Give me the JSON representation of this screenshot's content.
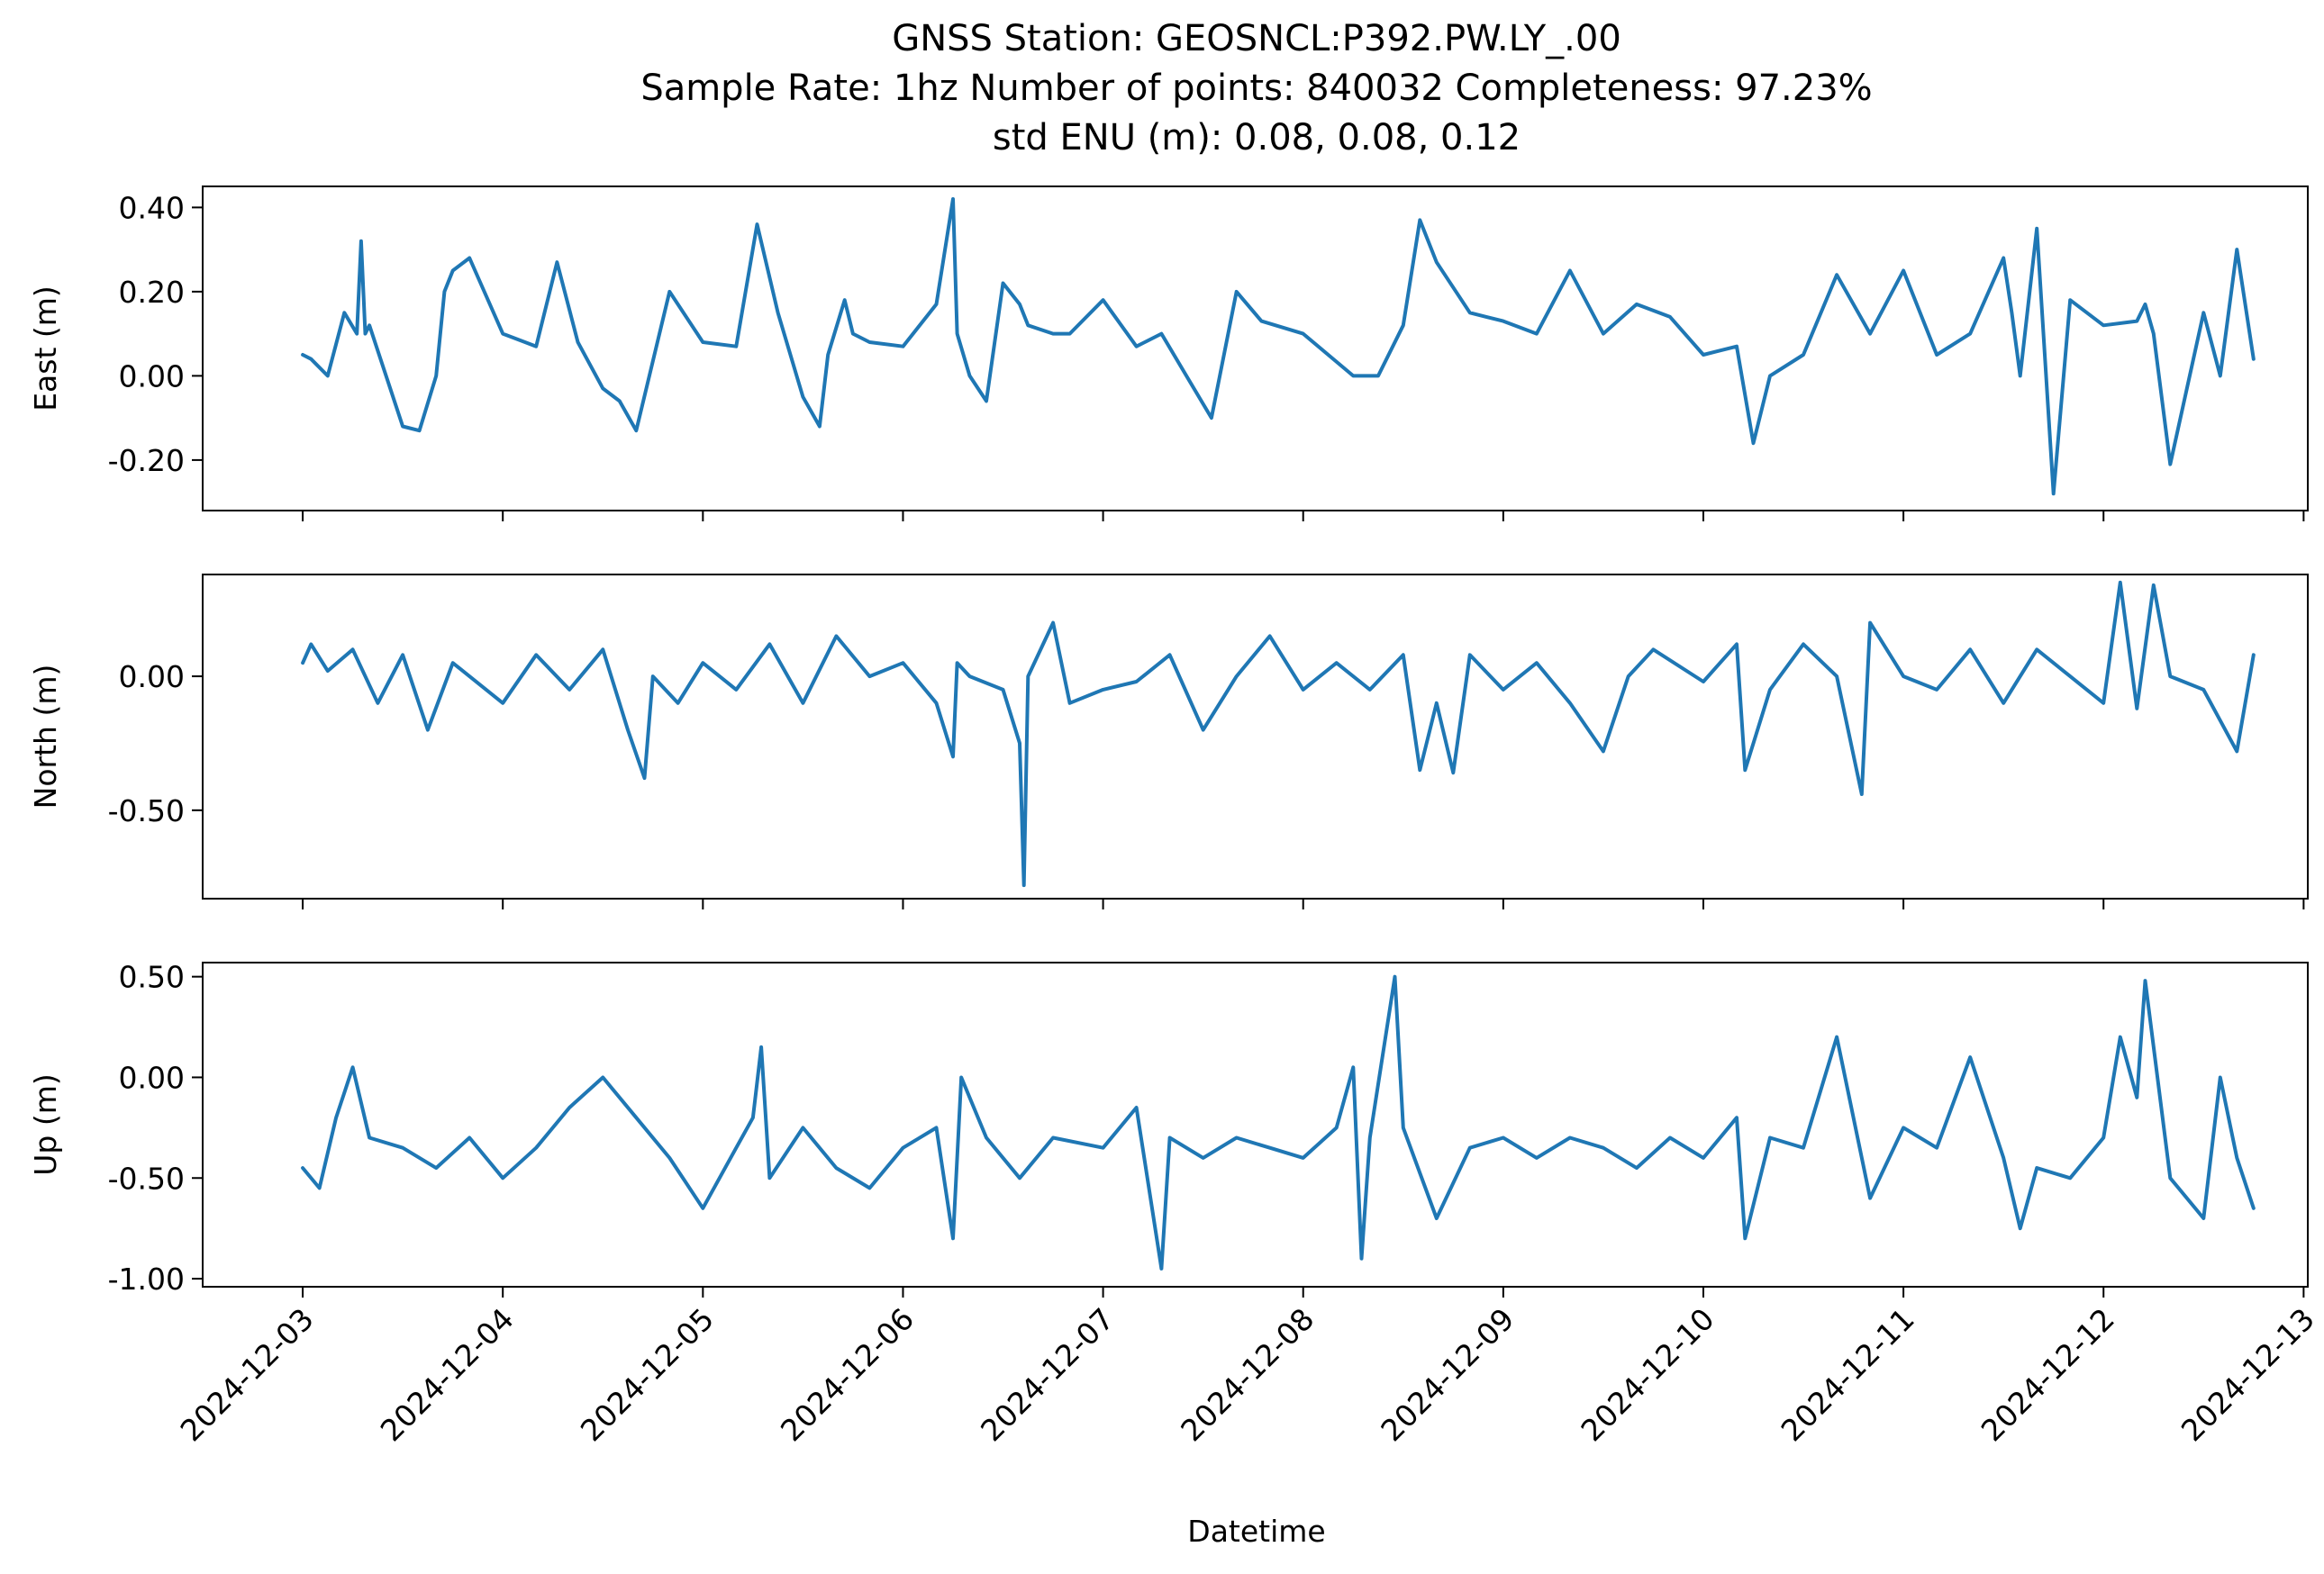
{
  "figure": {
    "title_lines": [
      "GNSS Station: GEOSNCL:P392.PW.LY_.00",
      "Sample Rate: 1hz   Number of points: 840032    Completeness:  97.23%",
      "std ENU (m):  0.08, 0.08, 0.12"
    ],
    "xlabel": "Datetime"
  },
  "chart_data": {
    "type": "line",
    "x_axis": {
      "ticks": [
        "2024-12-03",
        "2024-12-04",
        "2024-12-05",
        "2024-12-06",
        "2024-12-07",
        "2024-12-08",
        "2024-12-09",
        "2024-12-10",
        "2024-12-11",
        "2024-12-12",
        "2024-12-13"
      ],
      "range": [
        "2024-12-02T12:00",
        "2024-12-13T00:30"
      ]
    },
    "line_color": "#1f77b4",
    "panels": [
      {
        "ylabel": "East (m)",
        "ylim": [
          -0.32,
          0.45
        ],
        "yticks": [
          0.4,
          0.2,
          0.0,
          -0.2
        ],
        "ytick_labels": [
          "0.40",
          "0.20",
          "0.00",
          "-0.20"
        ],
        "x": [
          "2024-12-03T00:00",
          "2024-12-03T01:00",
          "2024-12-03T03:00",
          "2024-12-03T05:00",
          "2024-12-03T06:30",
          "2024-12-03T07:00",
          "2024-12-03T07:30",
          "2024-12-03T08:00",
          "2024-12-03T10:00",
          "2024-12-03T12:00",
          "2024-12-03T14:00",
          "2024-12-03T16:00",
          "2024-12-03T17:00",
          "2024-12-03T18:00",
          "2024-12-03T20:00",
          "2024-12-04T00:00",
          "2024-12-04T04:00",
          "2024-12-04T06:30",
          "2024-12-04T09:00",
          "2024-12-04T12:00",
          "2024-12-04T14:00",
          "2024-12-04T16:00",
          "2024-12-04T20:00",
          "2024-12-05T00:00",
          "2024-12-05T04:00",
          "2024-12-05T06:30",
          "2024-12-05T09:00",
          "2024-12-05T12:00",
          "2024-12-05T14:00",
          "2024-12-05T15:00",
          "2024-12-05T17:00",
          "2024-12-05T18:00",
          "2024-12-05T20:00",
          "2024-12-06T00:00",
          "2024-12-06T04:00",
          "2024-12-06T06:00",
          "2024-12-06T06:30",
          "2024-12-06T08:00",
          "2024-12-06T10:00",
          "2024-12-06T12:00",
          "2024-12-06T14:00",
          "2024-12-06T15:00",
          "2024-12-06T18:00",
          "2024-12-06T20:00",
          "2024-12-07T00:00",
          "2024-12-07T04:00",
          "2024-12-07T07:00",
          "2024-12-07T10:00",
          "2024-12-07T13:00",
          "2024-12-07T16:00",
          "2024-12-07T19:00",
          "2024-12-08T00:00",
          "2024-12-08T03:00",
          "2024-12-08T06:00",
          "2024-12-08T09:00",
          "2024-12-08T12:00",
          "2024-12-08T14:00",
          "2024-12-08T16:00",
          "2024-12-08T20:00",
          "2024-12-09T00:00",
          "2024-12-09T04:00",
          "2024-12-09T08:00",
          "2024-12-09T12:00",
          "2024-12-09T16:00",
          "2024-12-09T20:00",
          "2024-12-10T00:00",
          "2024-12-10T04:00",
          "2024-12-10T06:00",
          "2024-12-10T08:00",
          "2024-12-10T12:00",
          "2024-12-10T16:00",
          "2024-12-10T20:00",
          "2024-12-11T00:00",
          "2024-12-11T04:00",
          "2024-12-11T08:00",
          "2024-12-11T12:00",
          "2024-12-11T13:00",
          "2024-12-11T14:00",
          "2024-12-11T16:00",
          "2024-12-11T18:00",
          "2024-12-11T20:00",
          "2024-12-12T00:00",
          "2024-12-12T04:00",
          "2024-12-12T05:00",
          "2024-12-12T06:00",
          "2024-12-12T08:00",
          "2024-12-12T12:00",
          "2024-12-12T14:00",
          "2024-12-12T16:00",
          "2024-12-12T18:00"
        ],
        "values": [
          0.05,
          0.04,
          0.0,
          0.15,
          0.1,
          0.32,
          0.1,
          0.12,
          0.0,
          -0.12,
          -0.13,
          0.0,
          0.2,
          0.25,
          0.28,
          0.1,
          0.07,
          0.27,
          0.08,
          -0.03,
          -0.06,
          -0.13,
          0.2,
          0.08,
          0.07,
          0.36,
          0.15,
          -0.05,
          -0.12,
          0.05,
          0.18,
          0.1,
          0.08,
          0.07,
          0.17,
          0.42,
          0.1,
          0.0,
          -0.06,
          0.22,
          0.17,
          0.12,
          0.1,
          0.1,
          0.18,
          0.07,
          0.1,
          0.0,
          -0.1,
          0.2,
          0.13,
          0.1,
          0.05,
          0.0,
          0.0,
          0.12,
          0.37,
          0.27,
          0.15,
          0.13,
          0.1,
          0.25,
          0.1,
          0.17,
          0.14,
          0.05,
          0.07,
          -0.16,
          0.0,
          0.05,
          0.24,
          0.1,
          0.25,
          0.05,
          0.1,
          0.28,
          0.15,
          0.0,
          0.35,
          -0.28,
          0.18,
          0.12,
          0.13,
          0.17,
          0.1,
          -0.21,
          0.15,
          0.0,
          0.3,
          0.04
        ]
      },
      {
        "ylabel": "North (m)",
        "ylim": [
          -0.83,
          0.38
        ],
        "yticks": [
          0.0,
          -0.5
        ],
        "ytick_labels": [
          "0.00",
          "-0.50"
        ],
        "x": [
          "2024-12-03T00:00",
          "2024-12-03T01:00",
          "2024-12-03T03:00",
          "2024-12-03T06:00",
          "2024-12-03T09:00",
          "2024-12-03T12:00",
          "2024-12-03T15:00",
          "2024-12-03T18:00",
          "2024-12-04T00:00",
          "2024-12-04T04:00",
          "2024-12-04T08:00",
          "2024-12-04T12:00",
          "2024-12-04T15:00",
          "2024-12-04T17:00",
          "2024-12-04T18:00",
          "2024-12-04T21:00",
          "2024-12-05T00:00",
          "2024-12-05T04:00",
          "2024-12-05T08:00",
          "2024-12-05T12:00",
          "2024-12-05T16:00",
          "2024-12-05T20:00",
          "2024-12-06T00:00",
          "2024-12-06T04:00",
          "2024-12-06T06:00",
          "2024-12-06T06:30",
          "2024-12-06T08:00",
          "2024-12-06T12:00",
          "2024-12-06T14:00",
          "2024-12-06T14:30",
          "2024-12-06T15:00",
          "2024-12-06T18:00",
          "2024-12-06T20:00",
          "2024-12-07T00:00",
          "2024-12-07T04:00",
          "2024-12-07T08:00",
          "2024-12-07T12:00",
          "2024-12-07T16:00",
          "2024-12-07T20:00",
          "2024-12-08T00:00",
          "2024-12-08T04:00",
          "2024-12-08T08:00",
          "2024-12-08T12:00",
          "2024-12-08T14:00",
          "2024-12-08T16:00",
          "2024-12-08T18:00",
          "2024-12-08T20:00",
          "2024-12-09T00:00",
          "2024-12-09T04:00",
          "2024-12-09T08:00",
          "2024-12-09T12:00",
          "2024-12-09T15:00",
          "2024-12-09T18:00",
          "2024-12-10T00:00",
          "2024-12-10T04:00",
          "2024-12-10T05:00",
          "2024-12-10T08:00",
          "2024-12-10T12:00",
          "2024-12-10T16:00",
          "2024-12-10T19:00",
          "2024-12-10T20:00",
          "2024-12-11T00:00",
          "2024-12-11T04:00",
          "2024-12-11T08:00",
          "2024-12-11T12:00",
          "2024-12-11T16:00",
          "2024-12-11T20:00",
          "2024-12-12T00:00",
          "2024-12-12T02:00",
          "2024-12-12T04:00",
          "2024-12-12T06:00",
          "2024-12-12T08:00",
          "2024-12-12T12:00",
          "2024-12-12T16:00",
          "2024-12-12T18:00"
        ],
        "values": [
          0.05,
          0.12,
          0.02,
          0.1,
          -0.1,
          0.08,
          -0.2,
          0.05,
          -0.1,
          0.08,
          -0.05,
          0.1,
          -0.2,
          -0.38,
          0.0,
          -0.1,
          0.05,
          -0.05,
          0.12,
          -0.1,
          0.15,
          0.0,
          0.05,
          -0.1,
          -0.3,
          0.05,
          0.0,
          -0.05,
          -0.25,
          -0.78,
          0.0,
          0.2,
          -0.1,
          -0.05,
          -0.02,
          0.08,
          -0.2,
          0.0,
          0.15,
          -0.05,
          0.05,
          -0.05,
          0.08,
          -0.35,
          -0.1,
          -0.36,
          0.08,
          -0.05,
          0.05,
          -0.1,
          -0.28,
          0.0,
          0.1,
          -0.02,
          0.12,
          -0.35,
          -0.05,
          0.12,
          0.0,
          -0.44,
          0.2,
          0.0,
          -0.05,
          0.1,
          -0.1,
          0.1,
          0.0,
          -0.1,
          0.35,
          -0.12,
          0.34,
          0.0,
          -0.05,
          -0.28,
          0.08
        ]
      },
      {
        "ylabel": "Up (m)",
        "ylim": [
          -1.04,
          0.57
        ],
        "yticks": [
          0.5,
          0.0,
          -0.5,
          -1.0
        ],
        "ytick_labels": [
          "0.50",
          "0.00",
          "-0.50",
          "-1.00"
        ],
        "x": [
          "2024-12-03T00:00",
          "2024-12-03T02:00",
          "2024-12-03T04:00",
          "2024-12-03T06:00",
          "2024-12-03T08:00",
          "2024-12-03T12:00",
          "2024-12-03T16:00",
          "2024-12-03T20:00",
          "2024-12-04T00:00",
          "2024-12-04T04:00",
          "2024-12-04T08:00",
          "2024-12-04T12:00",
          "2024-12-04T16:00",
          "2024-12-04T20:00",
          "2024-12-05T00:00",
          "2024-12-05T04:00",
          "2024-12-05T06:00",
          "2024-12-05T07:00",
          "2024-12-05T08:00",
          "2024-12-05T12:00",
          "2024-12-05T16:00",
          "2024-12-05T20:00",
          "2024-12-06T00:00",
          "2024-12-06T04:00",
          "2024-12-06T06:00",
          "2024-12-06T07:00",
          "2024-12-06T10:00",
          "2024-12-06T14:00",
          "2024-12-06T18:00",
          "2024-12-07T00:00",
          "2024-12-07T04:00",
          "2024-12-07T07:00",
          "2024-12-07T08:00",
          "2024-12-07T12:00",
          "2024-12-07T16:00",
          "2024-12-07T20:00",
          "2024-12-08T00:00",
          "2024-12-08T04:00",
          "2024-12-08T06:00",
          "2024-12-08T07:00",
          "2024-12-08T08:00",
          "2024-12-08T11:00",
          "2024-12-08T12:00",
          "2024-12-08T16:00",
          "2024-12-08T20:00",
          "2024-12-09T00:00",
          "2024-12-09T04:00",
          "2024-12-09T08:00",
          "2024-12-09T12:00",
          "2024-12-09T16:00",
          "2024-12-09T20:00",
          "2024-12-10T00:00",
          "2024-12-10T04:00",
          "2024-12-10T05:00",
          "2024-12-10T08:00",
          "2024-12-10T12:00",
          "2024-12-10T16:00",
          "2024-12-10T20:00",
          "2024-12-11T00:00",
          "2024-12-11T04:00",
          "2024-12-11T08:00",
          "2024-12-11T12:00",
          "2024-12-11T14:00",
          "2024-12-11T16:00",
          "2024-12-11T20:00",
          "2024-12-12T00:00",
          "2024-12-12T02:00",
          "2024-12-12T04:00",
          "2024-12-12T05:00",
          "2024-12-12T08:00",
          "2024-12-12T12:00",
          "2024-12-12T14:00",
          "2024-12-12T16:00",
          "2024-12-12T18:00"
        ],
        "values": [
          -0.45,
          -0.55,
          -0.2,
          0.05,
          -0.3,
          -0.35,
          -0.45,
          -0.3,
          -0.5,
          -0.35,
          -0.15,
          0.0,
          -0.2,
          -0.4,
          -0.65,
          -0.35,
          -0.2,
          0.15,
          -0.5,
          -0.25,
          -0.45,
          -0.55,
          -0.35,
          -0.25,
          -0.8,
          0.0,
          -0.3,
          -0.5,
          -0.3,
          -0.35,
          -0.15,
          -0.95,
          -0.3,
          -0.4,
          -0.3,
          -0.35,
          -0.4,
          -0.25,
          0.05,
          -0.9,
          -0.3,
          0.5,
          -0.25,
          -0.7,
          -0.35,
          -0.3,
          -0.4,
          -0.3,
          -0.35,
          -0.45,
          -0.3,
          -0.4,
          -0.2,
          -0.8,
          -0.3,
          -0.35,
          0.2,
          -0.6,
          -0.25,
          -0.35,
          0.1,
          -0.4,
          -0.75,
          -0.45,
          -0.5,
          -0.3,
          0.2,
          -0.1,
          0.48,
          -0.5,
          -0.7,
          0.0,
          -0.4,
          -0.65
        ]
      }
    ]
  }
}
